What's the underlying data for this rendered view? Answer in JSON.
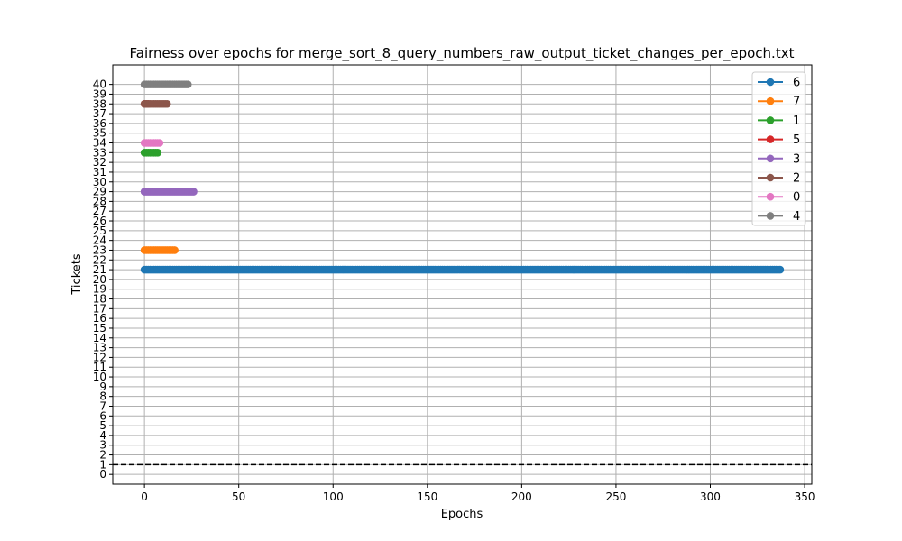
{
  "chart_data": {
    "type": "line",
    "title": "Fairness over epochs for merge_sort_8_query_numbers_raw_output_ticket_changes_per_epoch.txt",
    "xlabel": "Epochs",
    "ylabel": "Tickets",
    "xlim": [
      -16.8,
      353.8
    ],
    "ylim": [
      -1,
      42
    ],
    "xticks": [
      0,
      50,
      100,
      150,
      200,
      250,
      300,
      350
    ],
    "yticks": [
      0,
      1,
      2,
      3,
      4,
      5,
      6,
      7,
      8,
      9,
      10,
      11,
      12,
      13,
      14,
      15,
      16,
      17,
      18,
      19,
      20,
      21,
      22,
      23,
      24,
      25,
      26,
      27,
      28,
      29,
      30,
      31,
      32,
      33,
      34,
      35,
      36,
      37,
      38,
      39,
      40
    ],
    "grid": true,
    "legend_position": "top-right",
    "reference_line": {
      "y": 1,
      "style": "dashed",
      "color": "#000000"
    },
    "series": [
      {
        "name": "6",
        "color": "#1f77b4",
        "y": 21,
        "x_start": 0,
        "x_end": 337
      },
      {
        "name": "7",
        "color": "#ff7f0e",
        "y": 23,
        "x_start": 0,
        "x_end": 16
      },
      {
        "name": "1",
        "color": "#2ca02c",
        "y": 33,
        "x_start": 0,
        "x_end": 7
      },
      {
        "name": "5",
        "color": "#d62728",
        "y": 38,
        "x_start": 0,
        "x_end": 2
      },
      {
        "name": "3",
        "color": "#9467bd",
        "y": 29,
        "x_start": 0,
        "x_end": 26
      },
      {
        "name": "2",
        "color": "#8c564b",
        "y": 38,
        "x_start": 0,
        "x_end": 12
      },
      {
        "name": "0",
        "color": "#e377c2",
        "y": 34,
        "x_start": 0,
        "x_end": 8
      },
      {
        "name": "4",
        "color": "#7f7f7f",
        "y": 40,
        "x_start": 0,
        "x_end": 23
      }
    ]
  }
}
